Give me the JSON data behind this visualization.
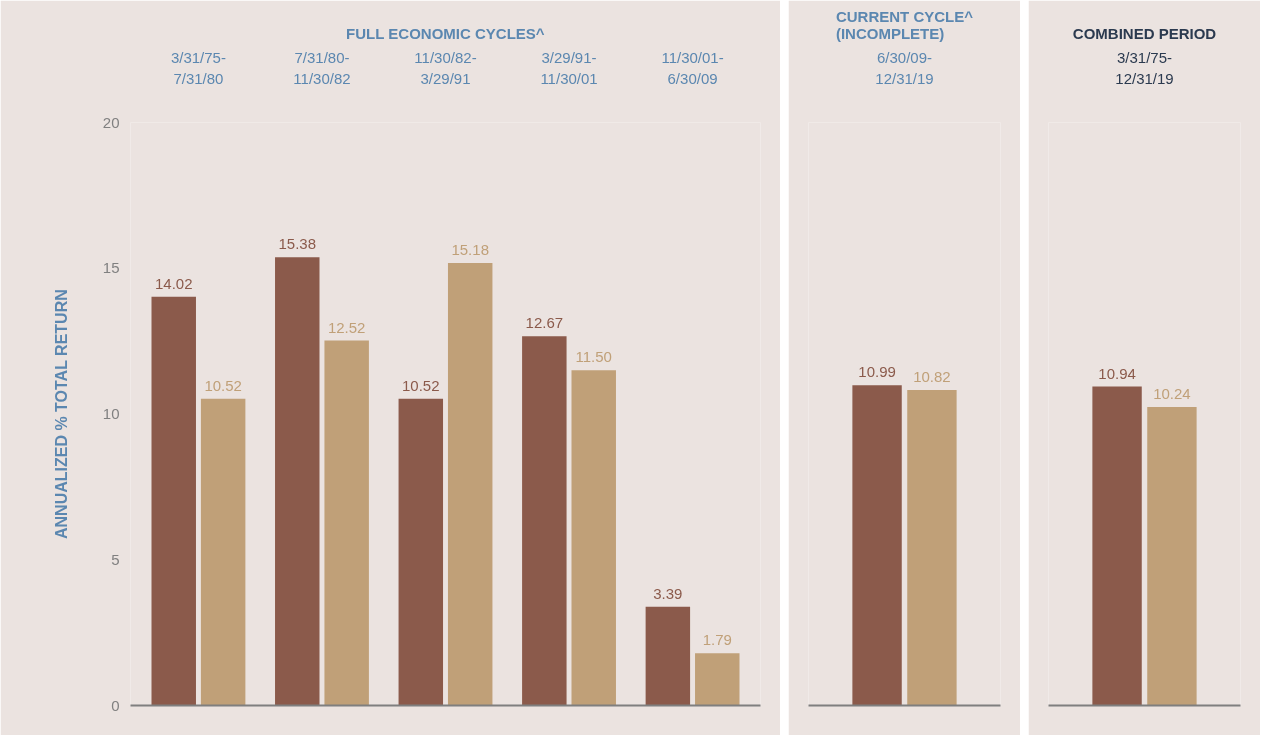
{
  "chart_data": [
    {
      "type": "bar",
      "title": "FULL ECONOMIC CYCLES^",
      "ylabel": "ANNUALIZED % TOTAL RETURN",
      "categories": [
        "3/31/75-\n7/31/80",
        "7/31/80-\n11/30/82",
        "11/30/82-\n3/29/91",
        "3/29/91-\n11/30/01",
        "11/30/01-\n6/30/09"
      ],
      "ylim": [
        0,
        20
      ],
      "yticks": [
        0,
        5,
        10,
        15,
        20
      ],
      "grid": false,
      "series": [
        {
          "color": "#8b5a4b",
          "values": [
            14.02,
            15.38,
            10.52,
            12.67,
            3.39
          ],
          "value_labels": [
            "14.02",
            "15.38",
            "10.52",
            "12.67",
            "3.39"
          ]
        },
        {
          "color": "#c0a078",
          "values": [
            10.52,
            12.52,
            15.18,
            11.5,
            1.79
          ],
          "value_labels": [
            "10.52",
            "12.52",
            "15.18",
            "11.50",
            "1.79"
          ]
        }
      ]
    },
    {
      "type": "bar",
      "title": "CURRENT CYCLE^\n(INCOMPLETE)",
      "categories": [
        "6/30/09-\n12/31/19"
      ],
      "ylim": [
        0,
        20
      ],
      "tick_labels": "x",
      "grid": false,
      "series": [
        {
          "color": "#8b5a4b",
          "values": [
            10.99
          ],
          "value_labels": [
            "10.99"
          ]
        },
        {
          "color": "#c0a078",
          "values": [
            10.82
          ],
          "value_labels": [
            "10.82"
          ]
        }
      ]
    },
    {
      "type": "bar",
      "title": "COMBINED PERIOD",
      "categories": [
        "3/31/75-\n12/31/19"
      ],
      "ylim": [
        0,
        20
      ],
      "tick_labels": "x",
      "grid": false,
      "series": [
        {
          "color": "#8b5a4b",
          "values": [
            10.94
          ],
          "value_labels": [
            "10.94"
          ]
        },
        {
          "color": "#c0a078",
          "values": [
            10.24
          ],
          "value_labels": [
            "10.24"
          ]
        }
      ]
    }
  ]
}
